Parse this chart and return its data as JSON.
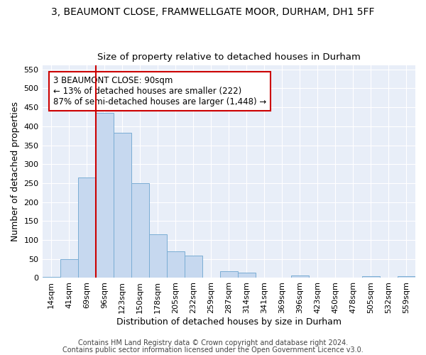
{
  "title_line1": "3, BEAUMONT CLOSE, FRAMWELLGATE MOOR, DURHAM, DH1 5FF",
  "title_line2": "Size of property relative to detached houses in Durham",
  "xlabel": "Distribution of detached houses by size in Durham",
  "ylabel": "Number of detached properties",
  "categories": [
    "14sqm",
    "41sqm",
    "69sqm",
    "96sqm",
    "123sqm",
    "150sqm",
    "178sqm",
    "205sqm",
    "232sqm",
    "259sqm",
    "287sqm",
    "314sqm",
    "341sqm",
    "369sqm",
    "396sqm",
    "423sqm",
    "450sqm",
    "478sqm",
    "505sqm",
    "532sqm",
    "559sqm"
  ],
  "values": [
    3,
    50,
    265,
    435,
    383,
    250,
    115,
    70,
    58,
    0,
    17,
    14,
    0,
    0,
    6,
    0,
    0,
    0,
    4,
    0,
    4
  ],
  "bar_color": "#c6d8ef",
  "bar_edge_color": "#7aadd4",
  "vline_color": "#cc0000",
  "annotation_line1": "3 BEAUMONT CLOSE: 90sqm",
  "annotation_line2": "← 13% of detached houses are smaller (222)",
  "annotation_line3": "87% of semi-detached houses are larger (1,448) →",
  "annotation_box_color": "#ffffff",
  "annotation_box_edge": "#cc0000",
  "ylim": [
    0,
    560
  ],
  "yticks": [
    0,
    50,
    100,
    150,
    200,
    250,
    300,
    350,
    400,
    450,
    500,
    550
  ],
  "bg_color": "#e8eef8",
  "grid_color": "#ffffff",
  "footer_line1": "Contains HM Land Registry data © Crown copyright and database right 2024.",
  "footer_line2": "Contains public sector information licensed under the Open Government Licence v3.0.",
  "title_fontsize": 10,
  "subtitle_fontsize": 9.5,
  "axis_label_fontsize": 9,
  "tick_fontsize": 8,
  "annotation_fontsize": 8.5,
  "footer_fontsize": 7
}
